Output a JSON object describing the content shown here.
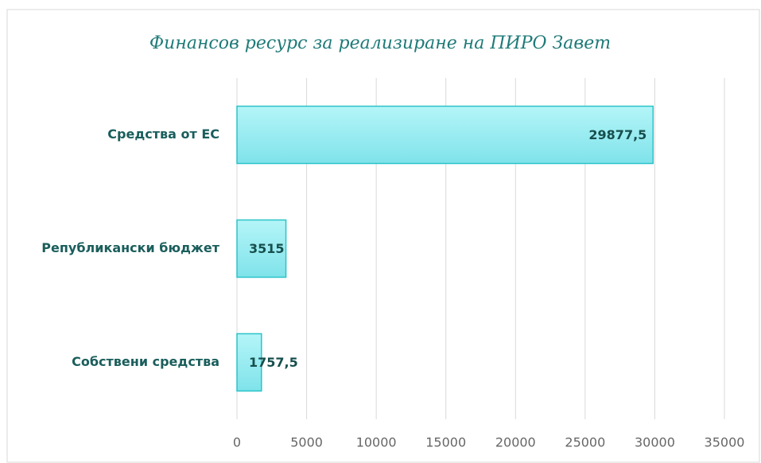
{
  "chart_data": {
    "type": "barh",
    "title": "Финансов ресурс за реализиране на ПИРО Завет",
    "categories": [
      "Средства от ЕС",
      "Републикански бюджет",
      "Собствени средства"
    ],
    "values": [
      29877.5,
      3515,
      1757.5
    ],
    "value_labels": [
      "29877,5",
      "3515",
      "1757,5"
    ],
    "color": "#9eeff4",
    "xlim": [
      0,
      35000
    ],
    "xticks": [
      0,
      5000,
      10000,
      15000,
      20000,
      25000,
      30000,
      35000
    ],
    "grid": true
  }
}
